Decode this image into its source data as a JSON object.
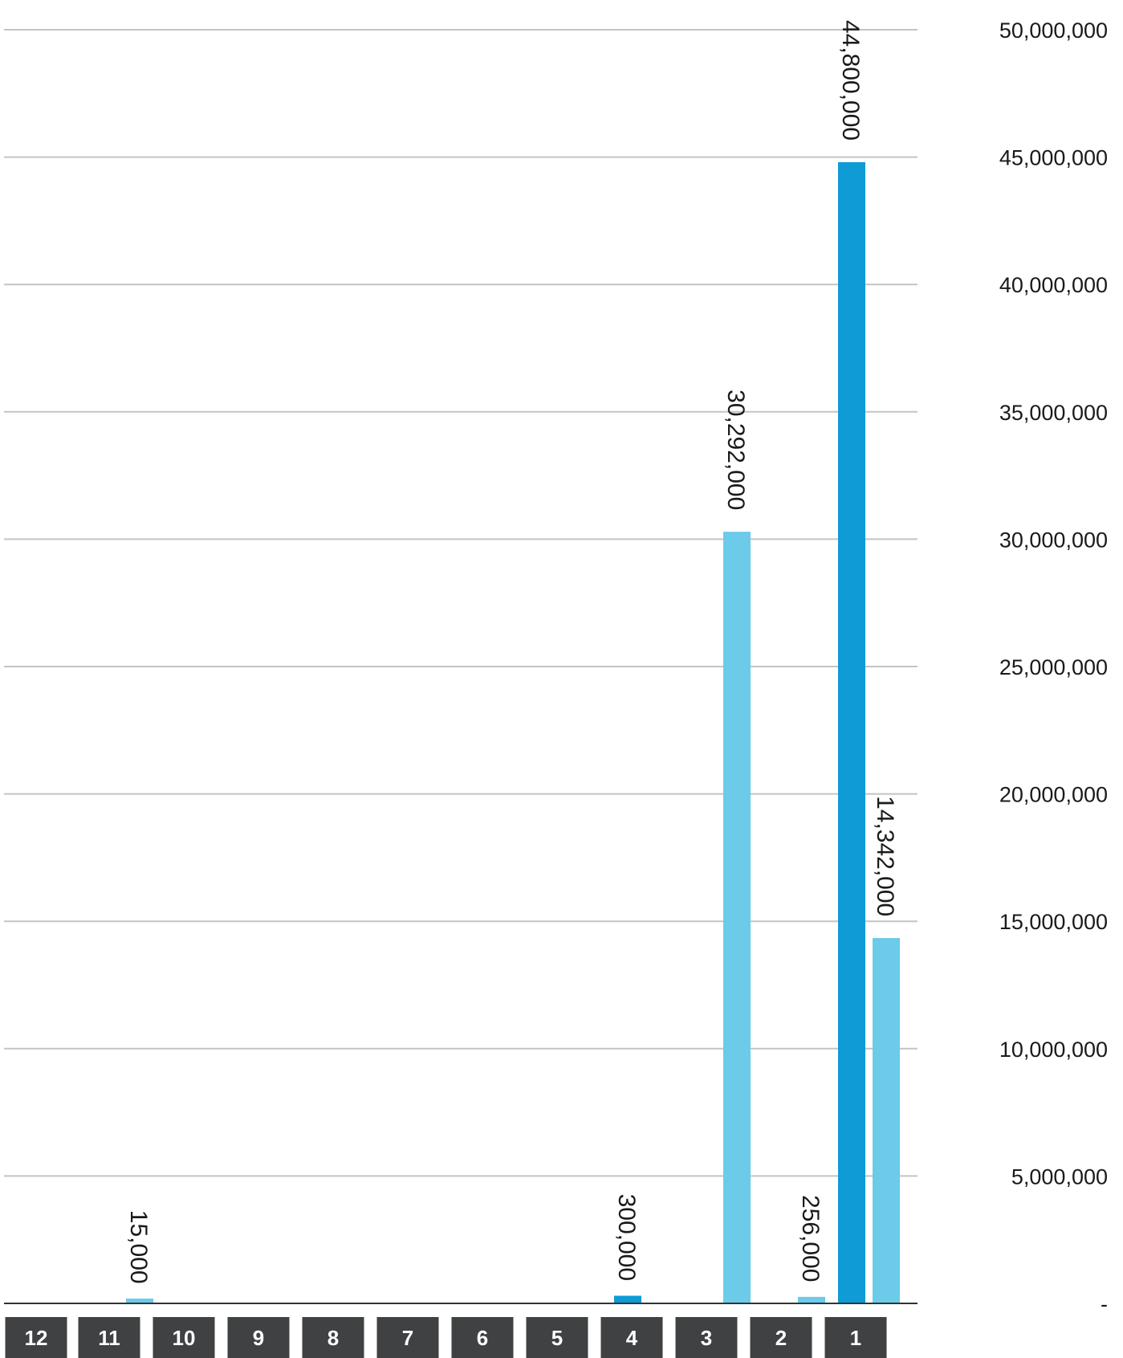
{
  "chart_data": {
    "type": "bar",
    "categories": [
      "12",
      "11",
      "10",
      "9",
      "8",
      "7",
      "6",
      "5",
      "4",
      "3",
      "2",
      "1"
    ],
    "series": [
      {
        "color": "#0e9bd6",
        "values": [
          0,
          0,
          0,
          0,
          0,
          0,
          0,
          0,
          300000,
          0,
          0,
          44800000
        ],
        "labels": [
          "",
          "",
          "",
          "",
          "",
          "",
          "",
          "",
          "300,000",
          "",
          "",
          "44,800,000"
        ]
      },
      {
        "color": "#6bcbe9",
        "values": [
          0,
          15000,
          0,
          0,
          0,
          0,
          0,
          0,
          0,
          30292000,
          256000,
          14342000
        ],
        "labels": [
          "",
          "15,000",
          "",
          "",
          "",
          "",
          "",
          "",
          "",
          "30,292,000",
          "256,000",
          "14,342,000"
        ]
      }
    ],
    "ylim": [
      0,
      50000000
    ],
    "yticks": [
      {
        "value": 0,
        "label": "-"
      },
      {
        "value": 5000000,
        "label": "5,000,000"
      },
      {
        "value": 10000000,
        "label": "10,000,000"
      },
      {
        "value": 15000000,
        "label": "15,000,000"
      },
      {
        "value": 20000000,
        "label": "20,000,000"
      },
      {
        "value": 25000000,
        "label": "25,000,000"
      },
      {
        "value": 30000000,
        "label": "30,000,000"
      },
      {
        "value": 35000000,
        "label": "35,000,000"
      },
      {
        "value": 40000000,
        "label": "40,000,000"
      },
      {
        "value": 45000000,
        "label": "45,000,000"
      },
      {
        "value": 50000000,
        "label": "50,000,000"
      }
    ],
    "yaxis_position": "right",
    "grid": true,
    "category_box_color": "#3f4142",
    "data_label_rotation": "vertical"
  }
}
